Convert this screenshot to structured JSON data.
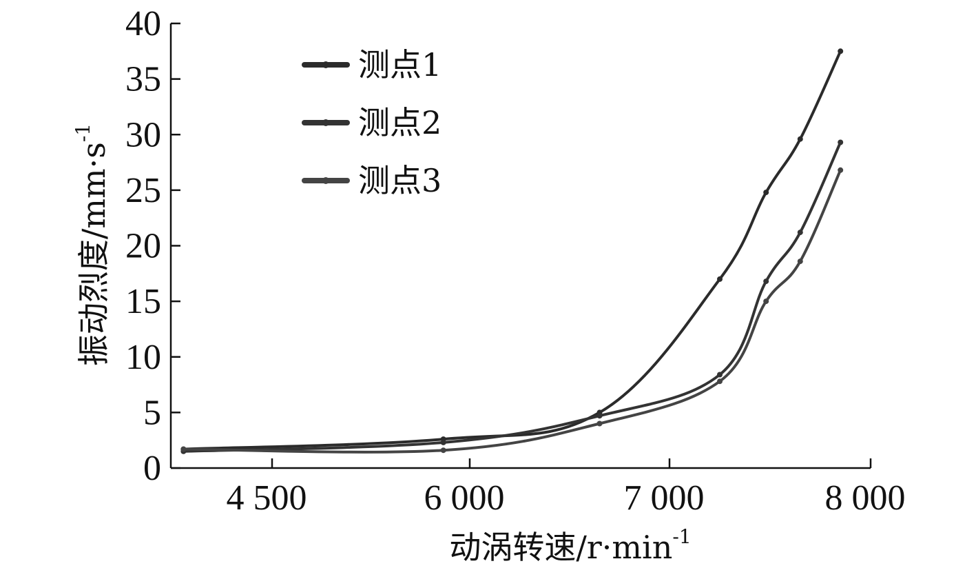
{
  "chart_data": {
    "type": "line",
    "xlabel": "动涡转速/r·min",
    "xlabel_sup": "-1",
    "ylabel": "振动烈度/mm·s",
    "ylabel_sup": "-1",
    "x_axis_scale": "non-linear (custom tick spacing)",
    "x_ticks": [
      {
        "value": 4500,
        "label": "4 500"
      },
      {
        "value": 6000,
        "label": "6 000"
      },
      {
        "value": 7000,
        "label": "7 000"
      },
      {
        "value": 8000,
        "label": "8 000"
      }
    ],
    "xlim": [
      3700,
      8000
    ],
    "ylim": [
      0,
      40
    ],
    "y_ticks": [
      0,
      5,
      10,
      15,
      20,
      25,
      30,
      35,
      40
    ],
    "grid": false,
    "legend": "top-left",
    "series": [
      {
        "name": "测点1",
        "color": "#2b2b2b",
        "points": [
          [
            3800,
            1.7
          ],
          [
            5800,
            2.6
          ],
          [
            6650,
            5.0
          ],
          [
            7250,
            17.0
          ],
          [
            7480,
            24.8
          ],
          [
            7650,
            29.6
          ],
          [
            7850,
            37.5
          ]
        ]
      },
      {
        "name": "测点2",
        "color": "#333333",
        "points": [
          [
            3800,
            1.5
          ],
          [
            5800,
            2.3
          ],
          [
            6650,
            4.7
          ],
          [
            7250,
            8.4
          ],
          [
            7480,
            16.8
          ],
          [
            7650,
            21.2
          ],
          [
            7850,
            29.3
          ]
        ]
      },
      {
        "name": "测点3",
        "color": "#444444",
        "points": [
          [
            3800,
            1.7
          ],
          [
            5800,
            1.6
          ],
          [
            6650,
            4.0
          ],
          [
            7250,
            7.8
          ],
          [
            7480,
            15.0
          ],
          [
            7650,
            18.6
          ],
          [
            7850,
            26.8
          ]
        ]
      }
    ]
  }
}
